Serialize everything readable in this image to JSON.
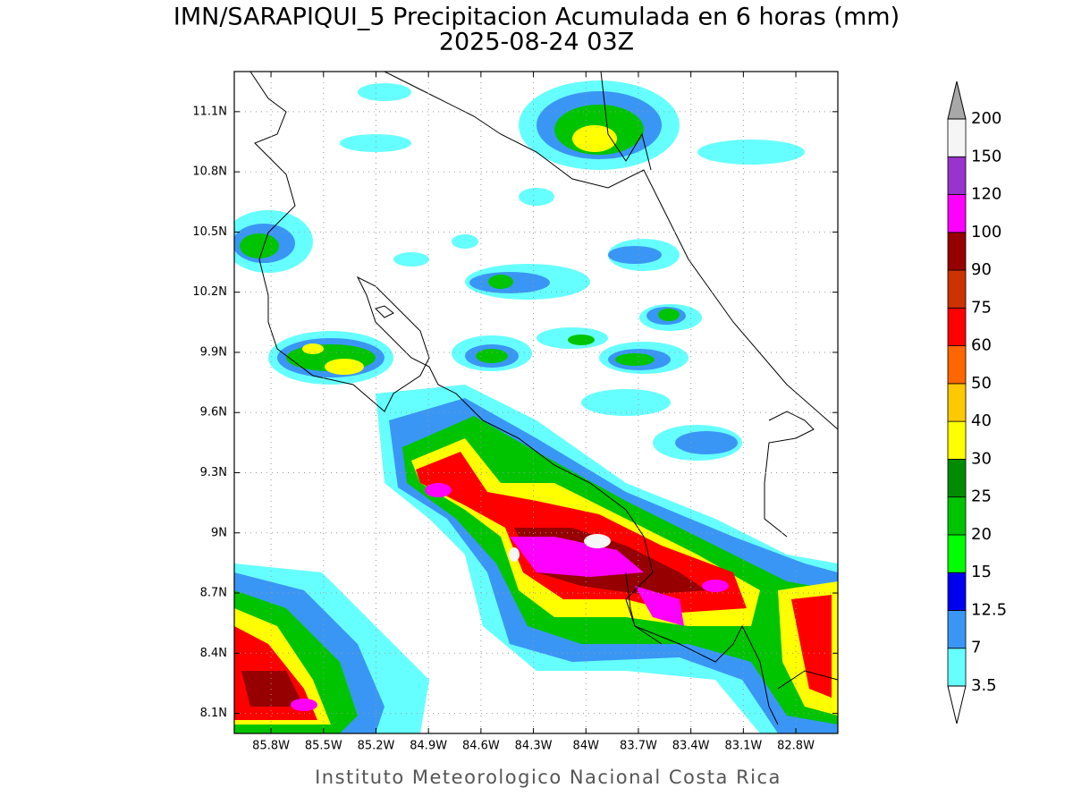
{
  "map": {
    "title": "IMN/SARAPIQUI_5 Precipitacion Acumulada en 6 horas (mm)",
    "subtitle": "2025-08-24 03Z",
    "footer": "Instituto Meteorologico Nacional Costa Rica",
    "lat_range": [
      8.0,
      11.3
    ],
    "lon_range": [
      -86.01,
      -82.56
    ],
    "lat_ticks": [
      {
        "value": 8.1,
        "label": "8.1N"
      },
      {
        "value": 8.4,
        "label": "8.4N"
      },
      {
        "value": 8.7,
        "label": "8.7N"
      },
      {
        "value": 9.0,
        "label": "9N"
      },
      {
        "value": 9.3,
        "label": "9.3N"
      },
      {
        "value": 9.6,
        "label": "9.6N"
      },
      {
        "value": 9.9,
        "label": "9.9N"
      },
      {
        "value": 10.2,
        "label": "10.2N"
      },
      {
        "value": 10.5,
        "label": "10.5N"
      },
      {
        "value": 10.8,
        "label": "10.8N"
      },
      {
        "value": 11.1,
        "label": "11.1N"
      }
    ],
    "lon_ticks": [
      {
        "value": -85.8,
        "label": "85.8W"
      },
      {
        "value": -85.5,
        "label": "85.5W"
      },
      {
        "value": -85.2,
        "label": "85.2W"
      },
      {
        "value": -84.9,
        "label": "84.9W"
      },
      {
        "value": -84.6,
        "label": "84.6W"
      },
      {
        "value": -84.3,
        "label": "84.3W"
      },
      {
        "value": -84.0,
        "label": "84W"
      },
      {
        "value": -83.7,
        "label": "83.7W"
      },
      {
        "value": -83.4,
        "label": "83.4W"
      },
      {
        "value": -83.1,
        "label": "83.1W"
      },
      {
        "value": -82.8,
        "label": "82.8W"
      }
    ],
    "grid": true,
    "colorbar": {
      "levels": [
        3.5,
        7,
        12.5,
        15,
        20,
        25,
        30,
        40,
        50,
        60,
        75,
        90,
        100,
        120,
        150,
        200
      ],
      "colors": [
        "#66ffff",
        "#3a96f5",
        "#0000f0",
        "#00ff00",
        "#00c400",
        "#008c00",
        "#ffff00",
        "#ffc800",
        "#ff6600",
        "#ff0000",
        "#cc3300",
        "#960000",
        "#ff00ff",
        "#9933cc",
        "#f5f5f5"
      ],
      "under_color": "#ffffff",
      "over_color": "#a8a8a8"
    }
  }
}
